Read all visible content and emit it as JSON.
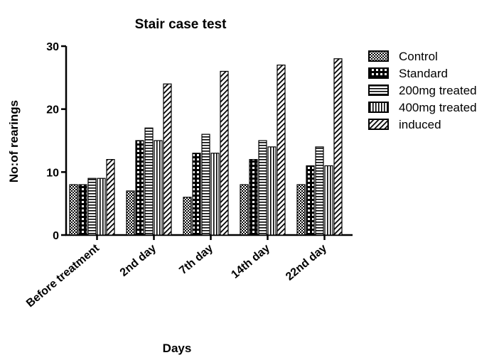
{
  "chart_data": {
    "type": "bar",
    "title": "Stair case test",
    "xlabel": "Days",
    "ylabel": "No:of rearings",
    "categories": [
      "Before treatment",
      "2nd day",
      "7th day",
      "14th day",
      "22nd day"
    ],
    "series": [
      {
        "name": "Control",
        "values": [
          8,
          7,
          6,
          8,
          8
        ],
        "pattern": "checker-fine"
      },
      {
        "name": "Standard",
        "values": [
          8,
          15,
          13,
          12,
          11
        ],
        "pattern": "dots"
      },
      {
        "name": "200mg treated",
        "values": [
          9,
          17,
          16,
          15,
          14
        ],
        "pattern": "horizontal-lines"
      },
      {
        "name": "400mg treated",
        "values": [
          9,
          15,
          13,
          14,
          11
        ],
        "pattern": "vertical-lines"
      },
      {
        "name": "induced",
        "values": [
          12,
          24,
          26,
          27,
          28
        ],
        "pattern": "diagonal-lines"
      }
    ],
    "ylim": [
      0,
      30
    ],
    "yticks": [
      0,
      10,
      20,
      30
    ],
    "grid": false,
    "legend_position": "right",
    "bar_color": "#000000",
    "background": "#ffffff"
  }
}
